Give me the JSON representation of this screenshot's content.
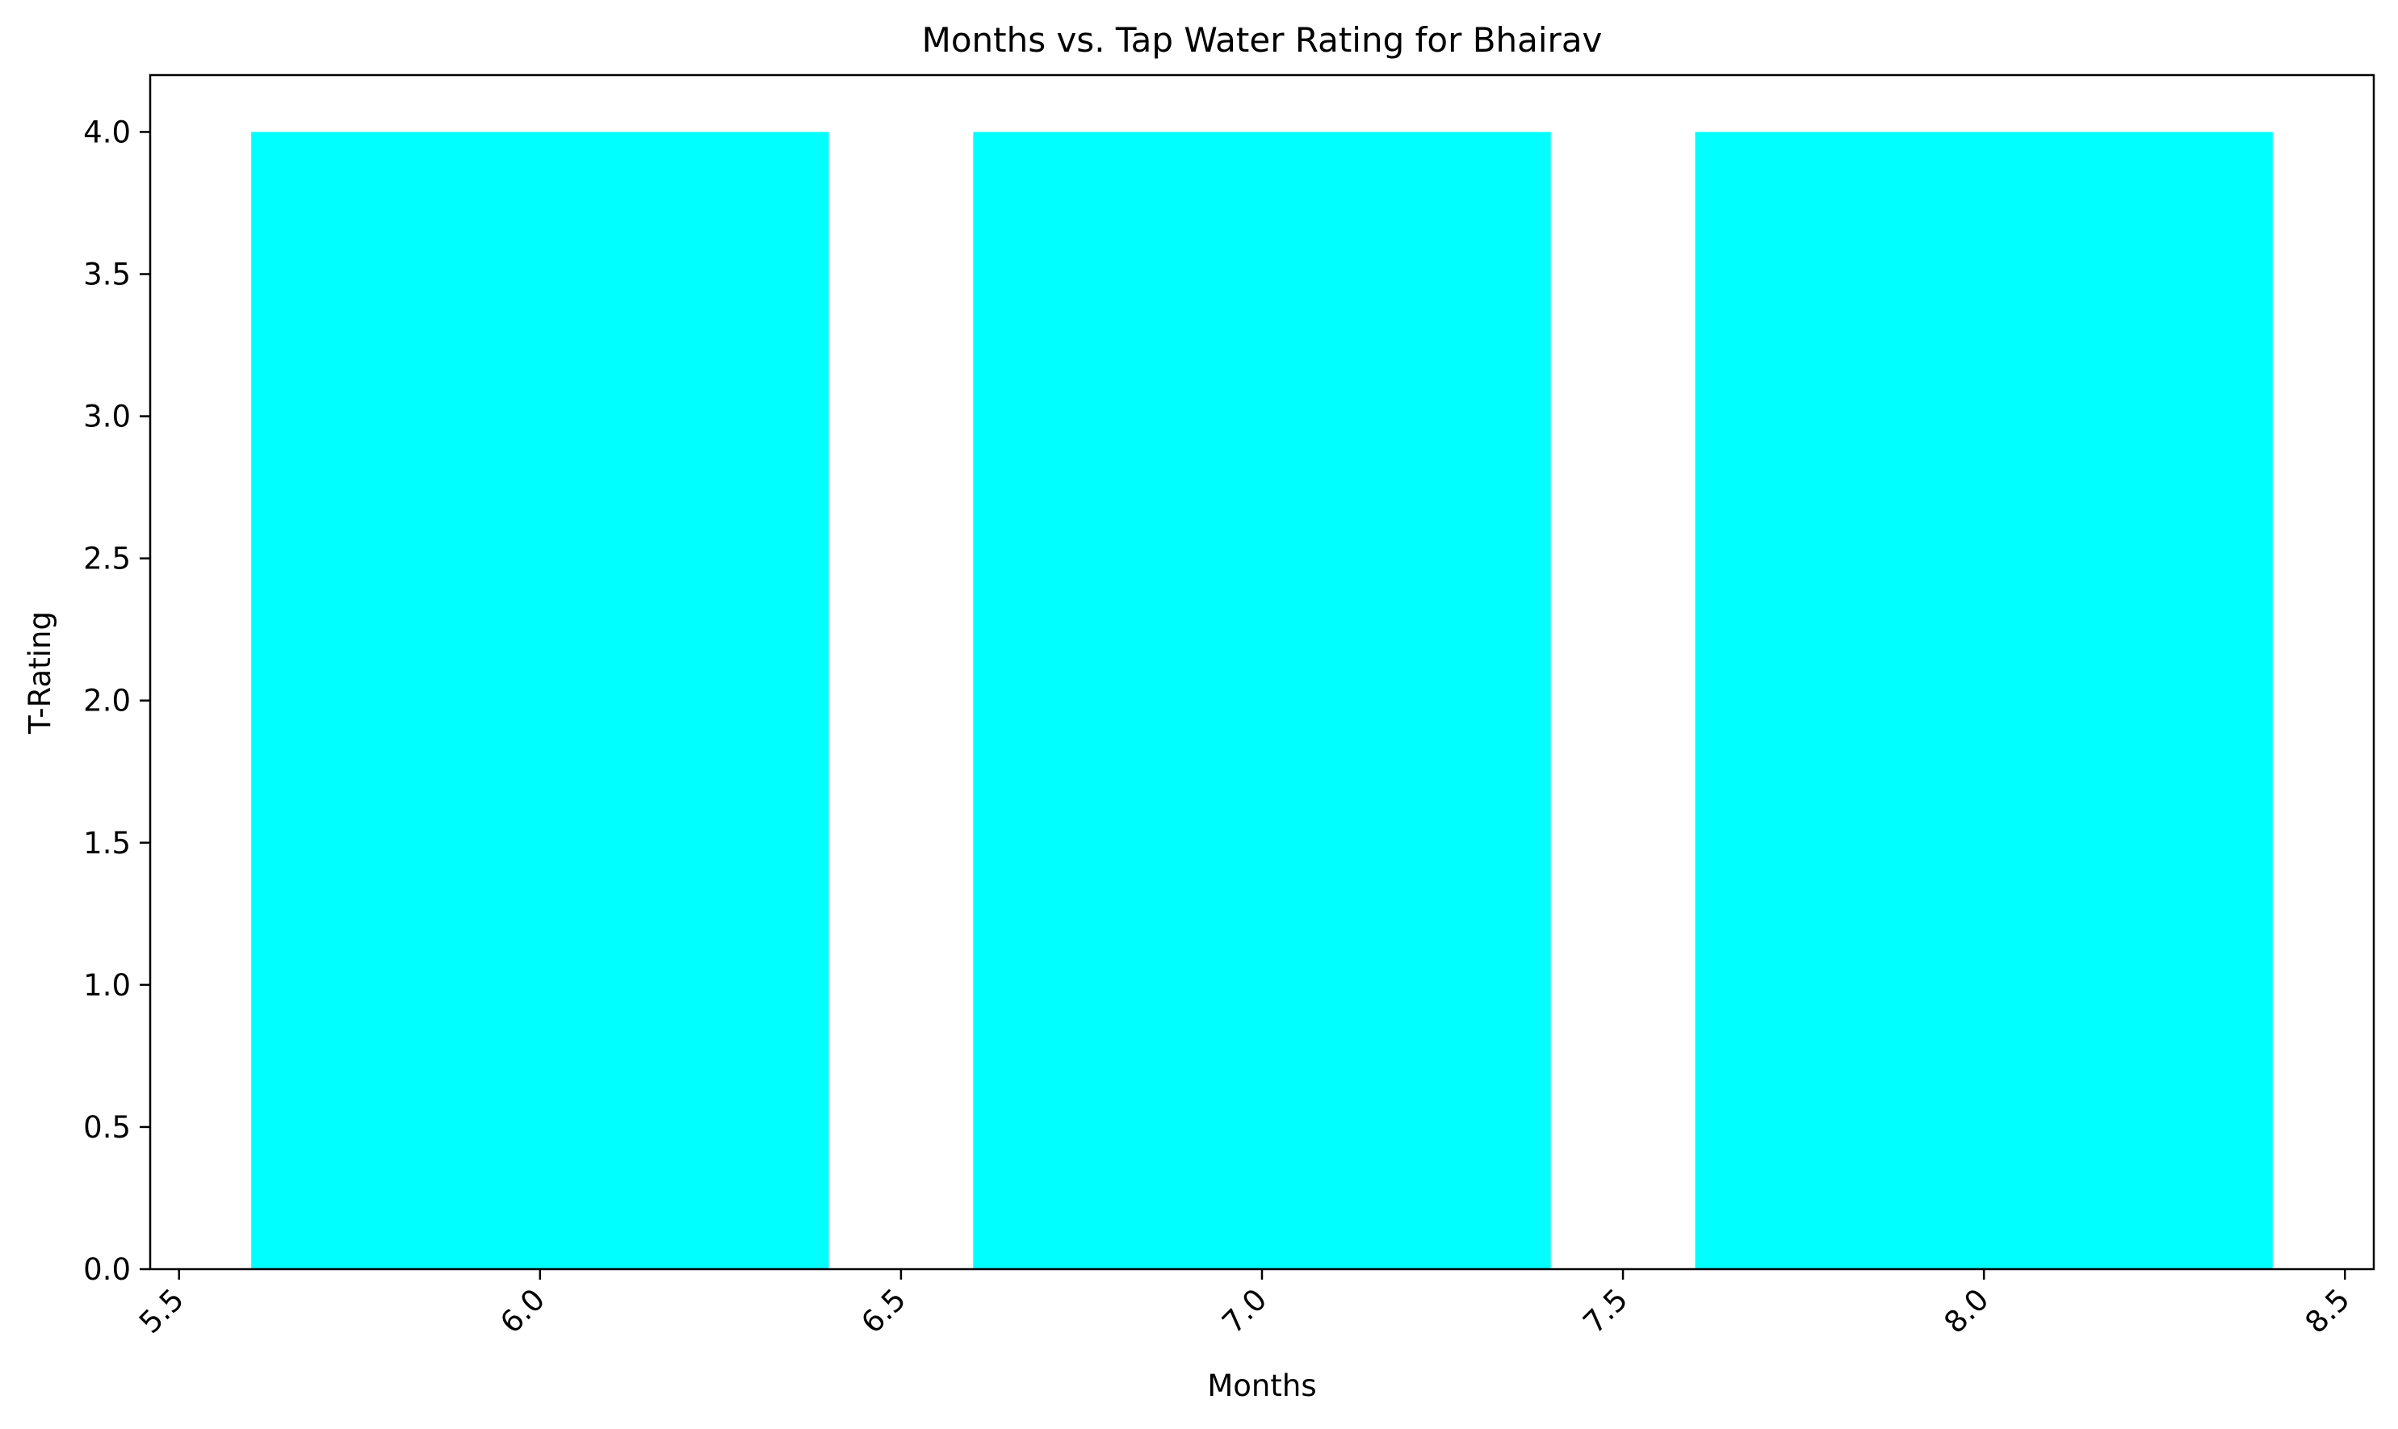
{
  "chart_data": {
    "type": "bar",
    "title": "Months vs. Tap Water Rating for Bhairav",
    "xlabel": "Months",
    "ylabel": "T-Rating",
    "x": [
      6,
      7,
      8
    ],
    "values": [
      4,
      4,
      4
    ],
    "bar_width": 0.8,
    "bar_color": "#00FFFF",
    "xlim": [
      5.46,
      8.54
    ],
    "ylim": [
      0,
      4.2
    ],
    "xticks": [
      5.5,
      6.0,
      6.5,
      7.0,
      7.5,
      8.0,
      8.5
    ],
    "xtick_labels": [
      "5.5",
      "6.0",
      "6.5",
      "7.0",
      "7.5",
      "8.0",
      "8.5"
    ],
    "yticks": [
      0,
      0.5,
      1,
      1.5,
      2,
      2.5,
      3,
      3.5,
      4
    ],
    "ytick_labels": [
      "0.0",
      "0.5",
      "1.0",
      "1.5",
      "2.0",
      "2.5",
      "3.0",
      "3.5",
      "4.0"
    ],
    "xtick_rotation_deg": 45,
    "grid": false,
    "legend": "none"
  }
}
